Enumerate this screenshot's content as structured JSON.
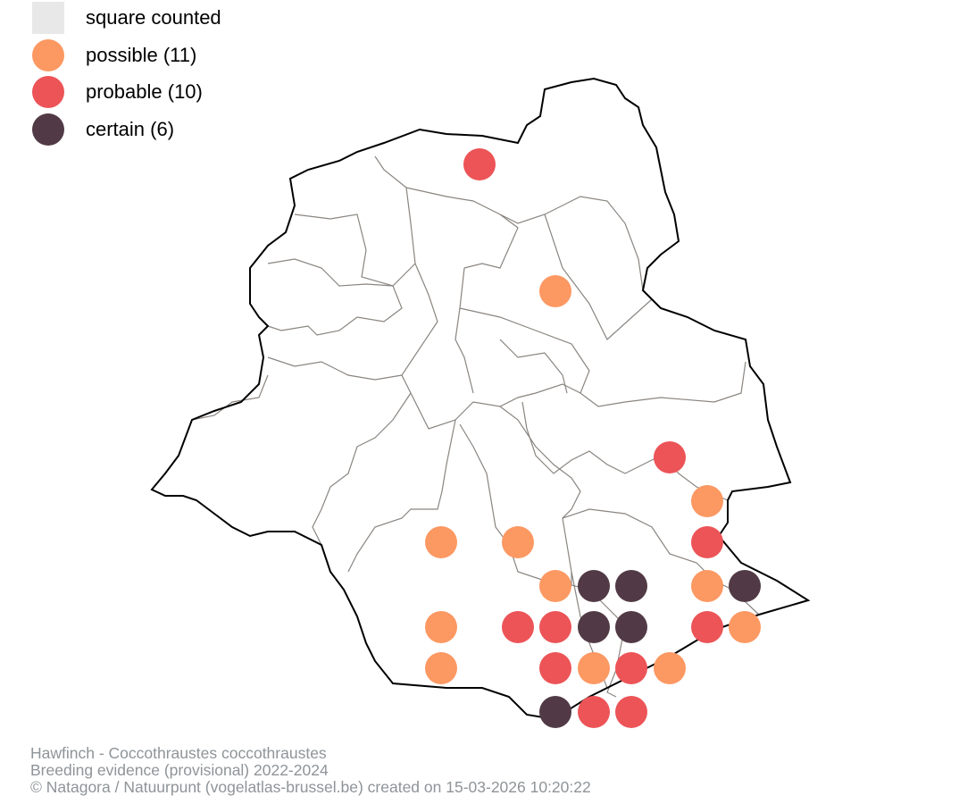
{
  "legend": {
    "items": [
      {
        "label": "square counted",
        "color": "#e8e8e8",
        "shape": "square"
      },
      {
        "label": "possible (11)",
        "color": "#fc9862",
        "shape": "circle"
      },
      {
        "label": "probable (10)",
        "color": "#ec5457",
        "shape": "circle"
      },
      {
        "label": "certain (6)",
        "color": "#513a45",
        "shape": "circle"
      }
    ]
  },
  "counts": {
    "possible": 11,
    "probable": 10,
    "certain": 6
  },
  "footer": {
    "line1": "Hawfinch - Coccothraustes coccothraustes",
    "line2": "Breeding evidence (provisional) 2022-2024",
    "line3": "© Natagora / Natuurpunt (vogelatlas-brussel.be) created on 15-03-2026 10:20:22"
  },
  "colors": {
    "boundary": "#000000",
    "municipality": "#8a8580"
  }
}
